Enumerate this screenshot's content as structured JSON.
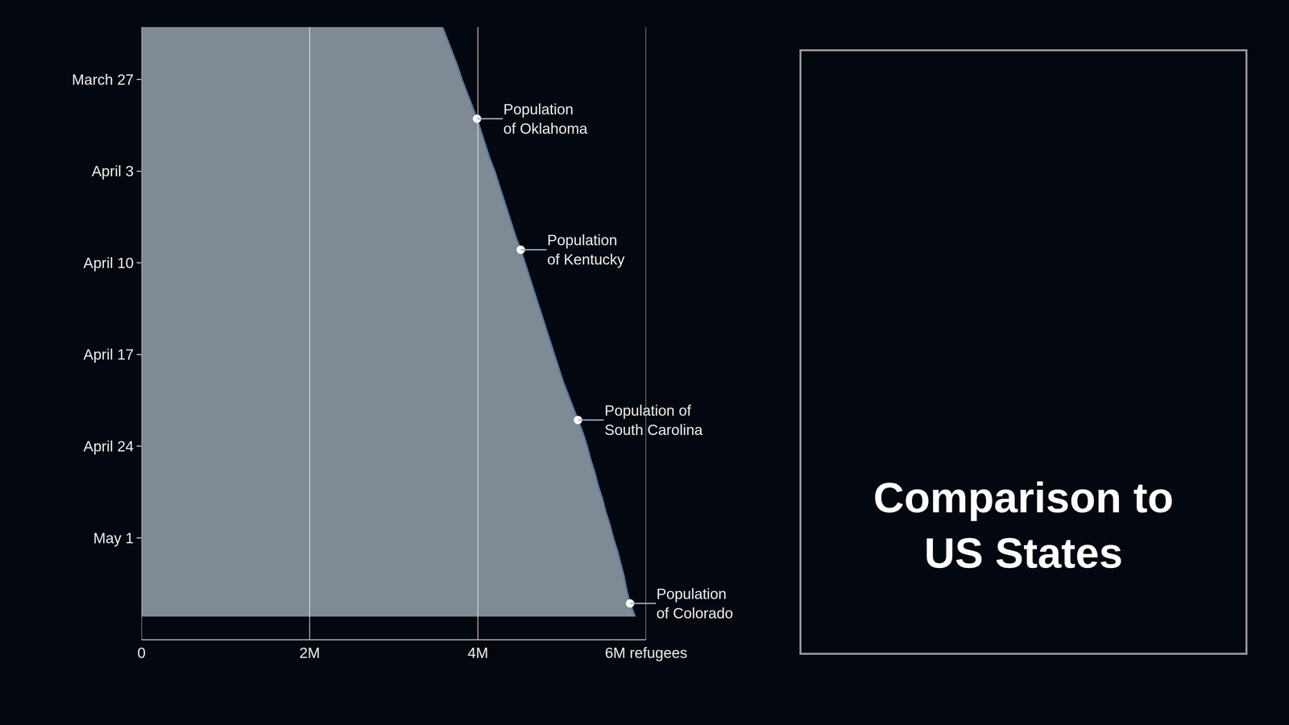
{
  "chart_data": {
    "type": "area",
    "orientation": "horizontal",
    "categories": [
      null,
      null,
      null,
      null,
      "March 27",
      null,
      null,
      null,
      null,
      null,
      null,
      "April 3",
      null,
      null,
      null,
      null,
      null,
      null,
      "April 10",
      null,
      null,
      null,
      null,
      null,
      null,
      "April 17",
      null,
      null,
      null,
      null,
      null,
      null,
      "April 24",
      null,
      null,
      null,
      null,
      null,
      null,
      "May 1",
      null,
      null,
      null,
      null,
      null,
      null
    ],
    "values": [
      3580000,
      3640000,
      3700000,
      3760000,
      3810000,
      3870000,
      3930000,
      3990000,
      4040000,
      4090000,
      4140000,
      4200000,
      4250000,
      4300000,
      4350000,
      4400000,
      4450000,
      4510000,
      4560000,
      4610000,
      4660000,
      4710000,
      4760000,
      4810000,
      4860000,
      4910000,
      4960000,
      5010000,
      5070000,
      5130000,
      5190000,
      5250000,
      5300000,
      5340000,
      5390000,
      5430000,
      5480000,
      5520000,
      5570000,
      5610000,
      5660000,
      5700000,
      5740000,
      5770000,
      5810000,
      5870000
    ],
    "color": "#7f8a94",
    "xlim": [
      0,
      6000000
    ],
    "xticks": [
      0,
      {
        "value": 2000000,
        "label": "2M"
      },
      {
        "value": 4000000,
        "label": "4M"
      },
      {
        "value": 6000000,
        "label": "6M refugees"
      }
    ],
    "grid": true,
    "annotations": [
      {
        "index": 7,
        "text": [
          "Population",
          "of Oklahoma"
        ]
      },
      {
        "index": 17,
        "text": [
          "Population",
          "of Kentucky"
        ]
      },
      {
        "index": 30,
        "text": [
          "Population of",
          "South Carolina"
        ]
      },
      {
        "index": 44,
        "text": [
          "Population",
          "of Colorado"
        ]
      }
    ]
  },
  "side_panel": {
    "title": [
      "Comparison to",
      "US States"
    ]
  }
}
